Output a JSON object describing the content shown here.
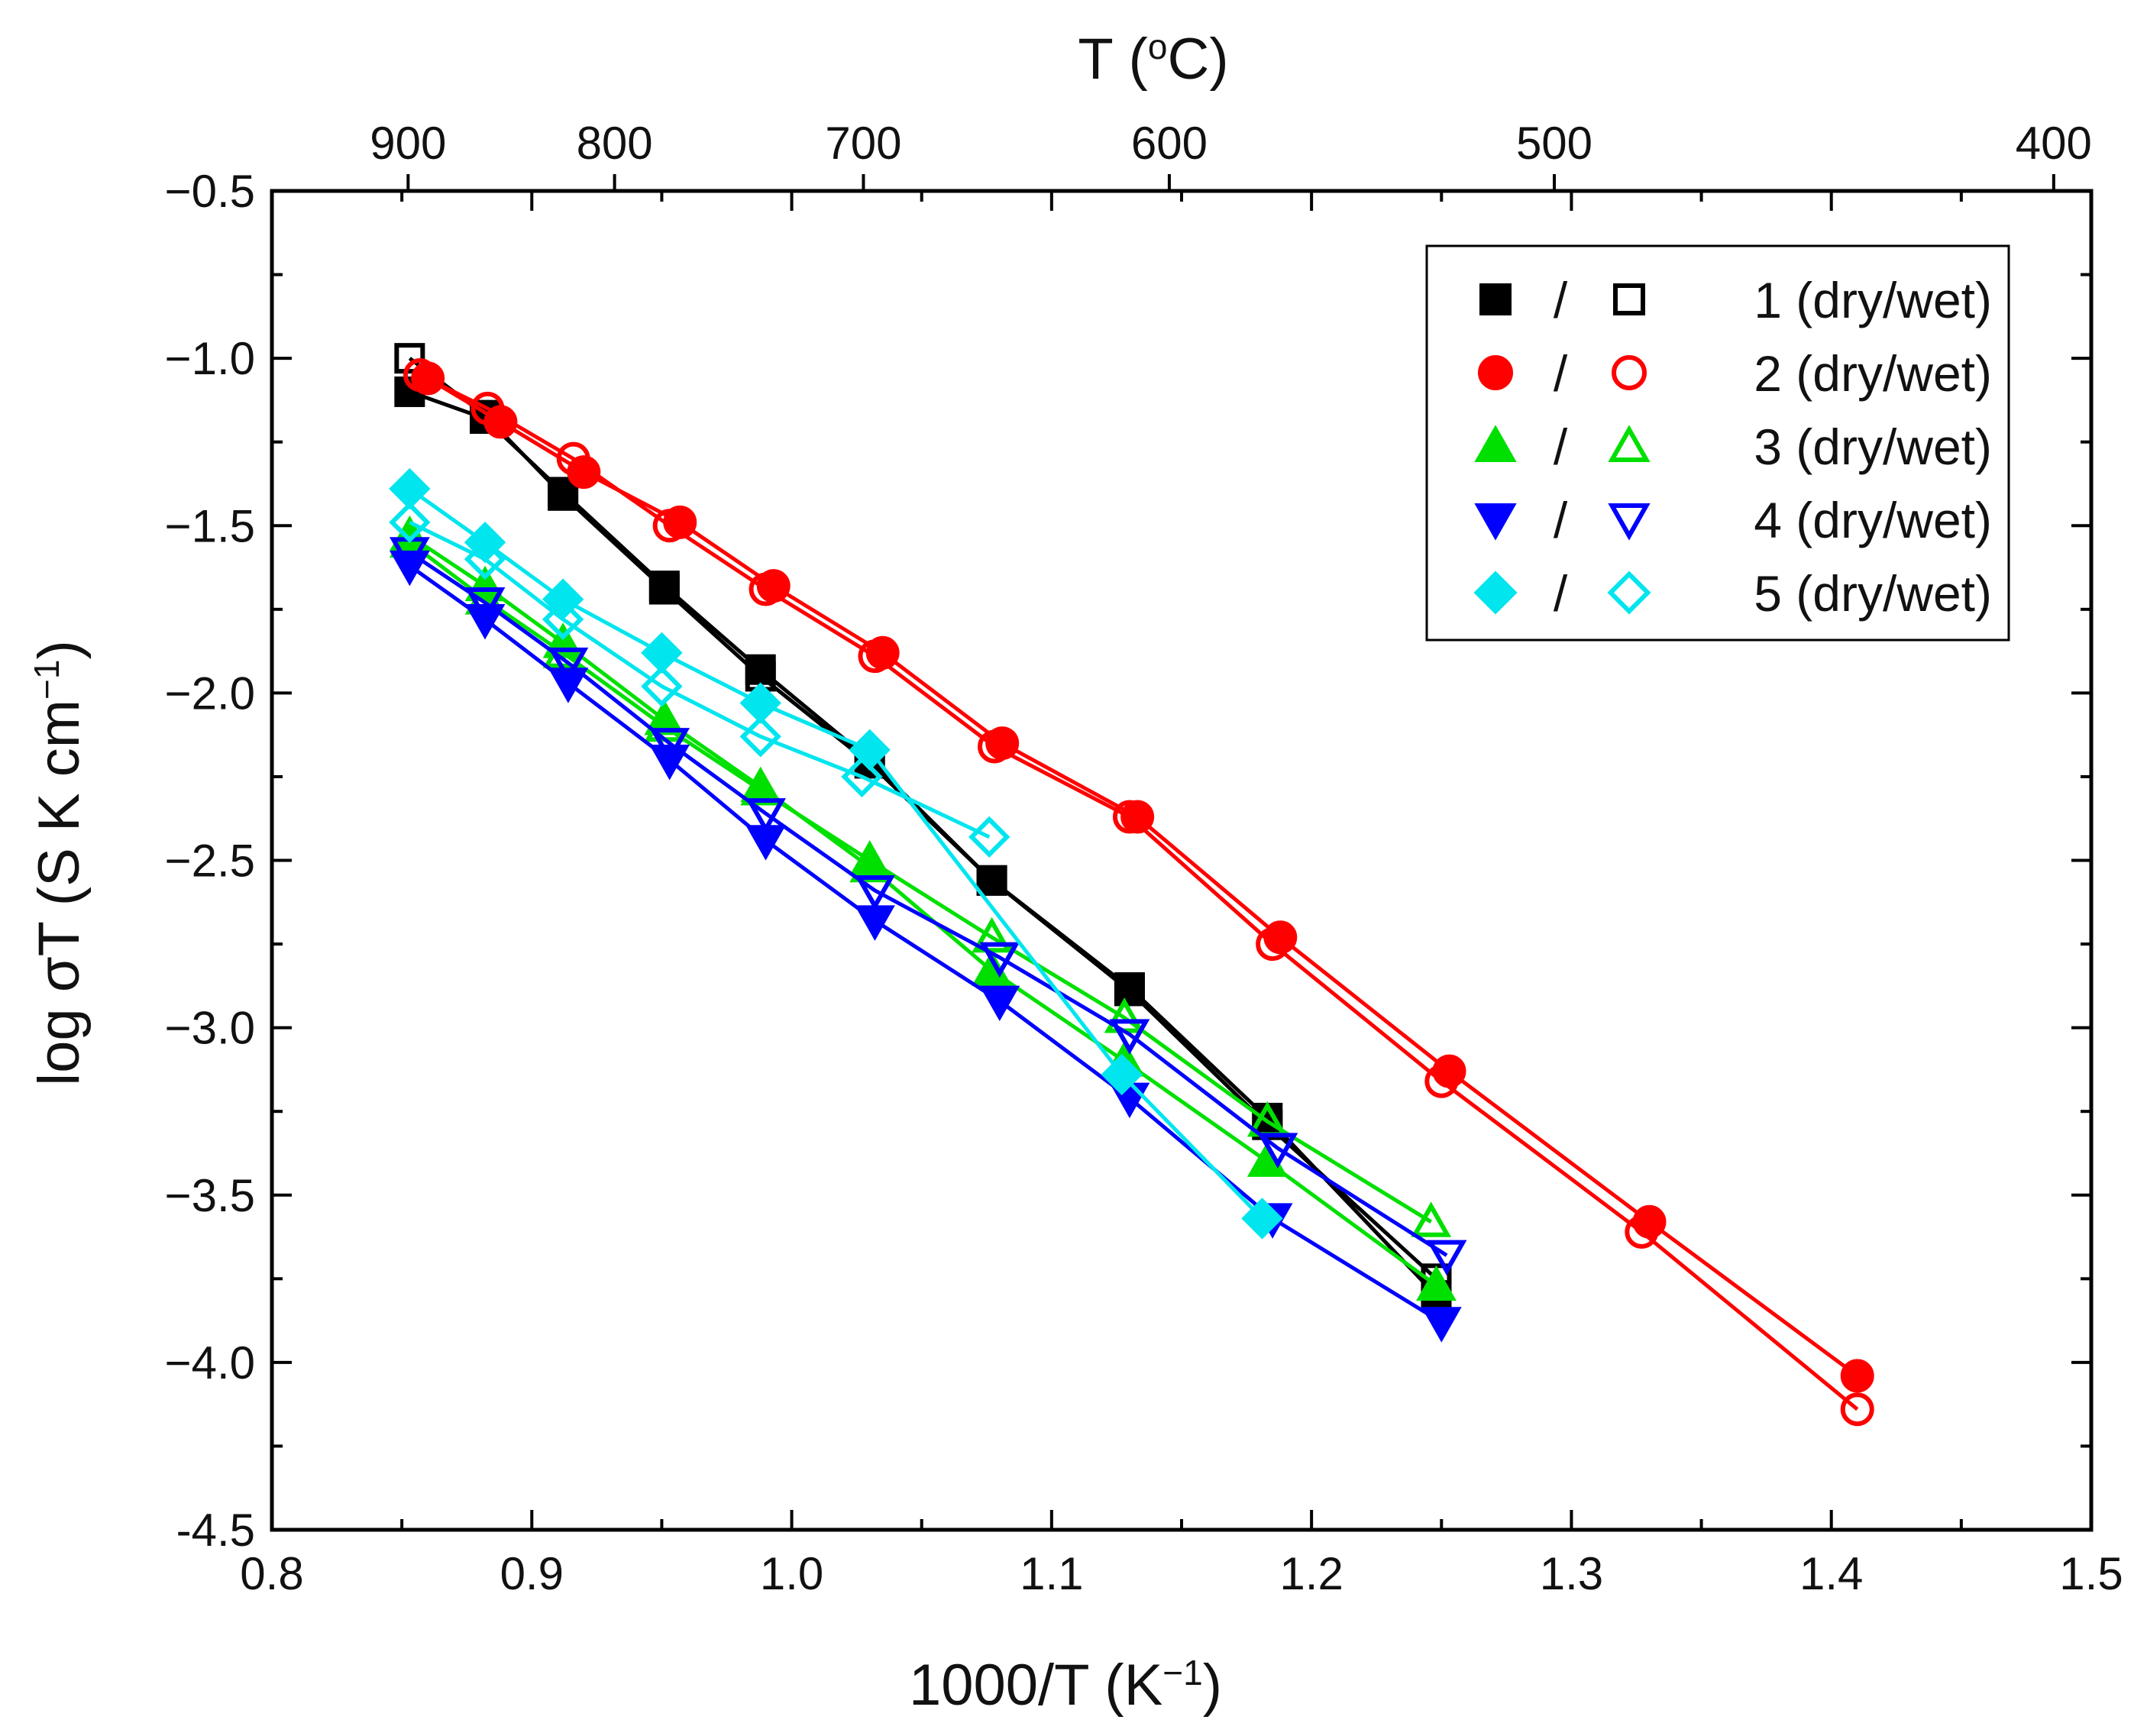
{
  "chart_data": {
    "type": "line",
    "xlabel": "1000/T (K",
    "xlabel_sup": "−1",
    "xlabel_end": ")",
    "ylabel": "log σT (S K cm",
    "ylabel_sup": "−1",
    "ylabel_end": ")",
    "top_axis_title_prefix": "T (",
    "top_axis_title_sup": "o",
    "top_axis_title_suffix": "C)",
    "xlim": [
      0.8,
      1.5
    ],
    "ylim": [
      -4.5,
      -0.5
    ],
    "x_ticks": [
      0.8,
      0.9,
      1.0,
      1.1,
      1.2,
      1.3,
      1.4,
      1.5
    ],
    "x_tick_labels": [
      "0.8",
      "0.9",
      "1.0",
      "1.1",
      "1.2",
      "1.3",
      "1.4",
      "1.5"
    ],
    "y_ticks": [
      -4.5,
      -4.0,
      -3.5,
      -3.0,
      -2.5,
      -2.0,
      -1.5,
      -1.0,
      -0.5
    ],
    "y_tick_labels": [
      "-4.5",
      "−4.0",
      "−3.5",
      "−3.0",
      "−2.5",
      "−2.0",
      "−1.5",
      "−1.0",
      "−0.5"
    ],
    "top_ticks_celsius": [
      900,
      800,
      700,
      600,
      500,
      400
    ],
    "top_tick_labels": [
      "900",
      "800",
      "700",
      "600",
      "500",
      "400"
    ],
    "legend_position": "top-right",
    "legend_separator": "/",
    "series": [
      {
        "name": "1 (dry)",
        "color": "#000000",
        "marker": "square",
        "filled": true,
        "x": [
          0.853,
          0.882,
          0.912,
          0.951,
          0.988,
          1.03,
          1.077,
          1.13,
          1.183,
          1.248
        ],
        "y": [
          -1.1,
          -1.18,
          -1.4,
          -1.68,
          -1.93,
          -2.2,
          -2.56,
          -2.88,
          -3.27,
          -3.8
        ]
      },
      {
        "name": "1 (wet)",
        "color": "#000000",
        "marker": "square",
        "filled": false,
        "x": [
          0.853,
          0.882,
          0.912,
          0.951,
          0.988,
          1.03,
          1.077,
          1.13,
          1.183,
          1.248
        ],
        "y": [
          -1.0,
          -1.17,
          -1.41,
          -1.69,
          -1.95,
          -2.21,
          -2.56,
          -2.89,
          -3.29,
          -3.75
        ]
      },
      {
        "name": "2 (dry)",
        "color": "#ff0000",
        "marker": "circle",
        "filled": true,
        "x": [
          0.86,
          0.888,
          0.92,
          0.957,
          0.993,
          1.035,
          1.081,
          1.133,
          1.188,
          1.253,
          1.33,
          1.41
        ],
        "y": [
          -1.06,
          -1.19,
          -1.34,
          -1.49,
          -1.68,
          -1.88,
          -2.15,
          -2.37,
          -2.73,
          -3.13,
          -3.58,
          -4.04
        ]
      },
      {
        "name": "2 (wet)",
        "color": "#ff0000",
        "marker": "circle",
        "filled": false,
        "x": [
          0.857,
          0.883,
          0.916,
          0.953,
          0.99,
          1.032,
          1.078,
          1.13,
          1.185,
          1.25,
          1.327,
          1.41
        ],
        "y": [
          -1.05,
          -1.15,
          -1.3,
          -1.5,
          -1.69,
          -1.89,
          -2.16,
          -2.37,
          -2.75,
          -3.16,
          -3.61,
          -4.14
        ]
      },
      {
        "name": "3 (dry)",
        "color": "#00e000",
        "marker": "triangle-up",
        "filled": true,
        "x": [
          0.853,
          0.882,
          0.912,
          0.951,
          0.988,
          1.03,
          1.077,
          1.128,
          1.183,
          1.248
        ],
        "y": [
          -1.53,
          -1.68,
          -1.85,
          -2.08,
          -2.28,
          -2.52,
          -2.83,
          -3.1,
          -3.4,
          -3.77
        ]
      },
      {
        "name": "3 (wet)",
        "color": "#00e000",
        "marker": "triangle-up",
        "filled": false,
        "x": [
          0.853,
          0.882,
          0.912,
          0.951,
          0.988,
          1.03,
          1.077,
          1.128,
          1.183,
          1.246
        ],
        "y": [
          -1.55,
          -1.72,
          -1.88,
          -2.1,
          -2.29,
          -2.5,
          -2.73,
          -2.97,
          -3.28,
          -3.58
        ]
      },
      {
        "name": "4 (dry)",
        "color": "#0000ff",
        "marker": "triangle-down",
        "filled": true,
        "x": [
          0.853,
          0.882,
          0.914,
          0.953,
          0.99,
          1.032,
          1.08,
          1.13,
          1.185,
          1.25
        ],
        "y": [
          -1.62,
          -1.78,
          -1.97,
          -2.2,
          -2.44,
          -2.68,
          -2.92,
          -3.21,
          -3.57,
          -3.88
        ]
      },
      {
        "name": "4 (wet)",
        "color": "#0000ff",
        "marker": "triangle-down",
        "filled": false,
        "x": [
          0.853,
          0.882,
          0.914,
          0.953,
          0.99,
          1.032,
          1.08,
          1.13,
          1.187,
          1.252
        ],
        "y": [
          -1.58,
          -1.73,
          -1.91,
          -2.15,
          -2.36,
          -2.59,
          -2.79,
          -3.02,
          -3.36,
          -3.68
        ]
      },
      {
        "name": "5 (dry)",
        "color": "#00e5ee",
        "marker": "diamond",
        "filled": true,
        "x": [
          0.853,
          0.882,
          0.912,
          0.95,
          0.988,
          1.03,
          1.127,
          1.181
        ],
        "y": [
          -1.39,
          -1.55,
          -1.72,
          -1.88,
          -2.03,
          -2.17,
          -3.14,
          -3.57
        ]
      },
      {
        "name": "5 (wet)",
        "color": "#00e5ee",
        "marker": "diamond",
        "filled": false,
        "x": [
          0.853,
          0.882,
          0.912,
          0.95,
          0.988,
          1.027,
          1.076
        ],
        "y": [
          -1.49,
          -1.6,
          -1.78,
          -1.98,
          -2.13,
          -2.25,
          -2.43
        ]
      }
    ],
    "legend": [
      {
        "label": "1 (dry/wet)",
        "color": "#000000",
        "marker": "square"
      },
      {
        "label": "2 (dry/wet)",
        "color": "#ff0000",
        "marker": "circle"
      },
      {
        "label": "3 (dry/wet)",
        "color": "#00e000",
        "marker": "triangle-up"
      },
      {
        "label": "4 (dry/wet)",
        "color": "#0000ff",
        "marker": "triangle-down"
      },
      {
        "label": "5 (dry/wet)",
        "color": "#00e5ee",
        "marker": "diamond"
      }
    ]
  }
}
